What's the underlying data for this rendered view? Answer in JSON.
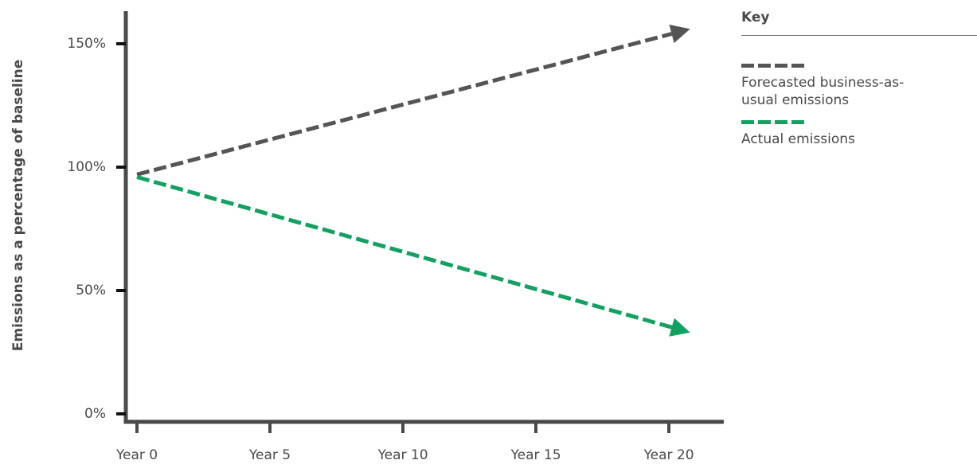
{
  "chart_data": {
    "type": "line",
    "x": [
      "Year 0",
      "Year 5",
      "Year 10",
      "Year 15",
      "Year 20"
    ],
    "xticks": [
      "Year 0",
      "Year 5",
      "Year 10",
      "Year 15",
      "Year 20"
    ],
    "yticks": [
      "0%",
      "50%",
      "100%",
      "150%"
    ],
    "ylabel": "Emissions as a percentage of baseline",
    "xlabel": "",
    "ylim": [
      0,
      160
    ],
    "grid": false,
    "legend_position": "right",
    "series": [
      {
        "name": "Forecasted business-as-usual emissions",
        "color": "#555555",
        "style": "dashed-arrow",
        "points": [
          [
            0,
            97
          ],
          [
            20.8,
            156
          ]
        ]
      },
      {
        "name": "Actual emissions",
        "color": "#12a160",
        "style": "dashed-arrow",
        "points": [
          [
            0,
            96
          ],
          [
            20.8,
            33
          ]
        ]
      }
    ]
  },
  "legend": {
    "title": "Key",
    "items": [
      {
        "label": "Forecasted business-as-usual emissions",
        "color": "#555555"
      },
      {
        "label": "Actual emissions",
        "color": "#12a160"
      }
    ]
  }
}
